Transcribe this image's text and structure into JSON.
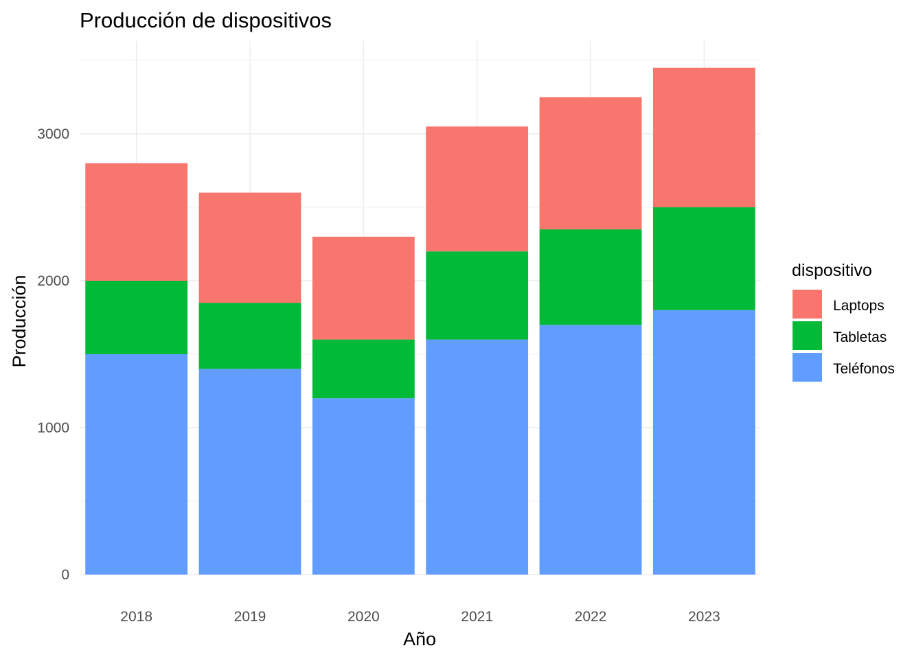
{
  "chart_data": {
    "type": "bar",
    "stacked": true,
    "title": "Producción de dispositivos",
    "xlabel": "Año",
    "ylabel": "Producción",
    "categories": [
      "2018",
      "2019",
      "2020",
      "2021",
      "2022",
      "2023"
    ],
    "series": [
      {
        "name": "Teléfonos",
        "color": "#619CFF",
        "values": [
          1500,
          1400,
          1200,
          1600,
          1700,
          1800
        ]
      },
      {
        "name": "Tabletas",
        "color": "#00BA38",
        "values": [
          500,
          450,
          400,
          600,
          650,
          700
        ]
      },
      {
        "name": "Laptops",
        "color": "#F8766D",
        "values": [
          800,
          750,
          700,
          850,
          900,
          950
        ]
      }
    ],
    "yticks": [
      0,
      1000,
      2000,
      3000
    ],
    "ylim": [
      0,
      3500
    ],
    "grid": true,
    "legend": {
      "title": "dispositivo",
      "position": "right",
      "entries": [
        "Laptops",
        "Tabletas",
        "Teléfonos"
      ]
    }
  }
}
